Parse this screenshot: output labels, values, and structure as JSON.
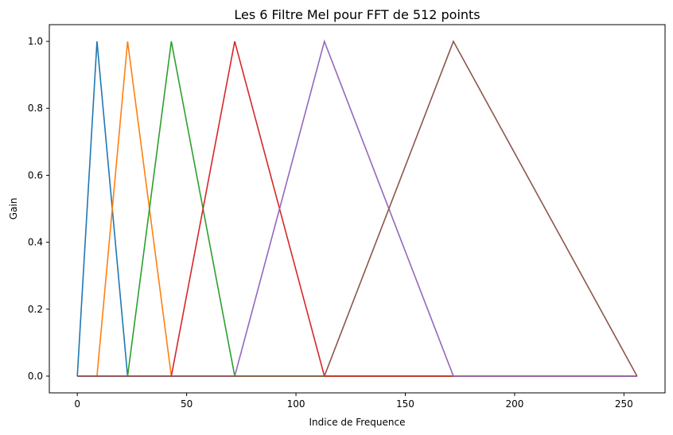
{
  "chart_data": {
    "type": "line",
    "title": "Les 6 Filtre Mel pour FFT de 512 points",
    "xlabel": "Indice de Frequence",
    "ylabel": "Gain",
    "xlim": [
      -12.8,
      268.8
    ],
    "ylim": [
      -0.05,
      1.05
    ],
    "x_ticks": [
      0,
      50,
      100,
      150,
      200,
      250
    ],
    "y_ticks": [
      0.0,
      0.2,
      0.4,
      0.6,
      0.8,
      1.0
    ],
    "x_tick_labels": [
      "0",
      "50",
      "100",
      "150",
      "200",
      "250"
    ],
    "y_tick_labels": [
      "0.0",
      "0.2",
      "0.4",
      "0.6",
      "0.8",
      "1.0"
    ],
    "grid": false,
    "legend": "none",
    "series": [
      {
        "color": "#1f77b4",
        "x": [
          0,
          9,
          23,
          256
        ],
        "y": [
          0,
          1,
          0,
          0
        ]
      },
      {
        "color": "#ff7f0e",
        "x": [
          0,
          9,
          23,
          43,
          256
        ],
        "y": [
          0,
          0,
          1,
          0,
          0
        ]
      },
      {
        "color": "#2ca02c",
        "x": [
          0,
          23,
          43,
          72,
          256
        ],
        "y": [
          0,
          0,
          1,
          0,
          0
        ]
      },
      {
        "color": "#d62728",
        "x": [
          0,
          43,
          72,
          113,
          256
        ],
        "y": [
          0,
          0,
          1,
          0,
          0
        ]
      },
      {
        "color": "#9467bd",
        "x": [
          0,
          72,
          113,
          172,
          256
        ],
        "y": [
          0,
          0,
          1,
          0,
          0
        ]
      },
      {
        "color": "#8c564b",
        "x": [
          0,
          113,
          172,
          256
        ],
        "y": [
          0,
          0,
          1,
          0
        ]
      }
    ]
  }
}
